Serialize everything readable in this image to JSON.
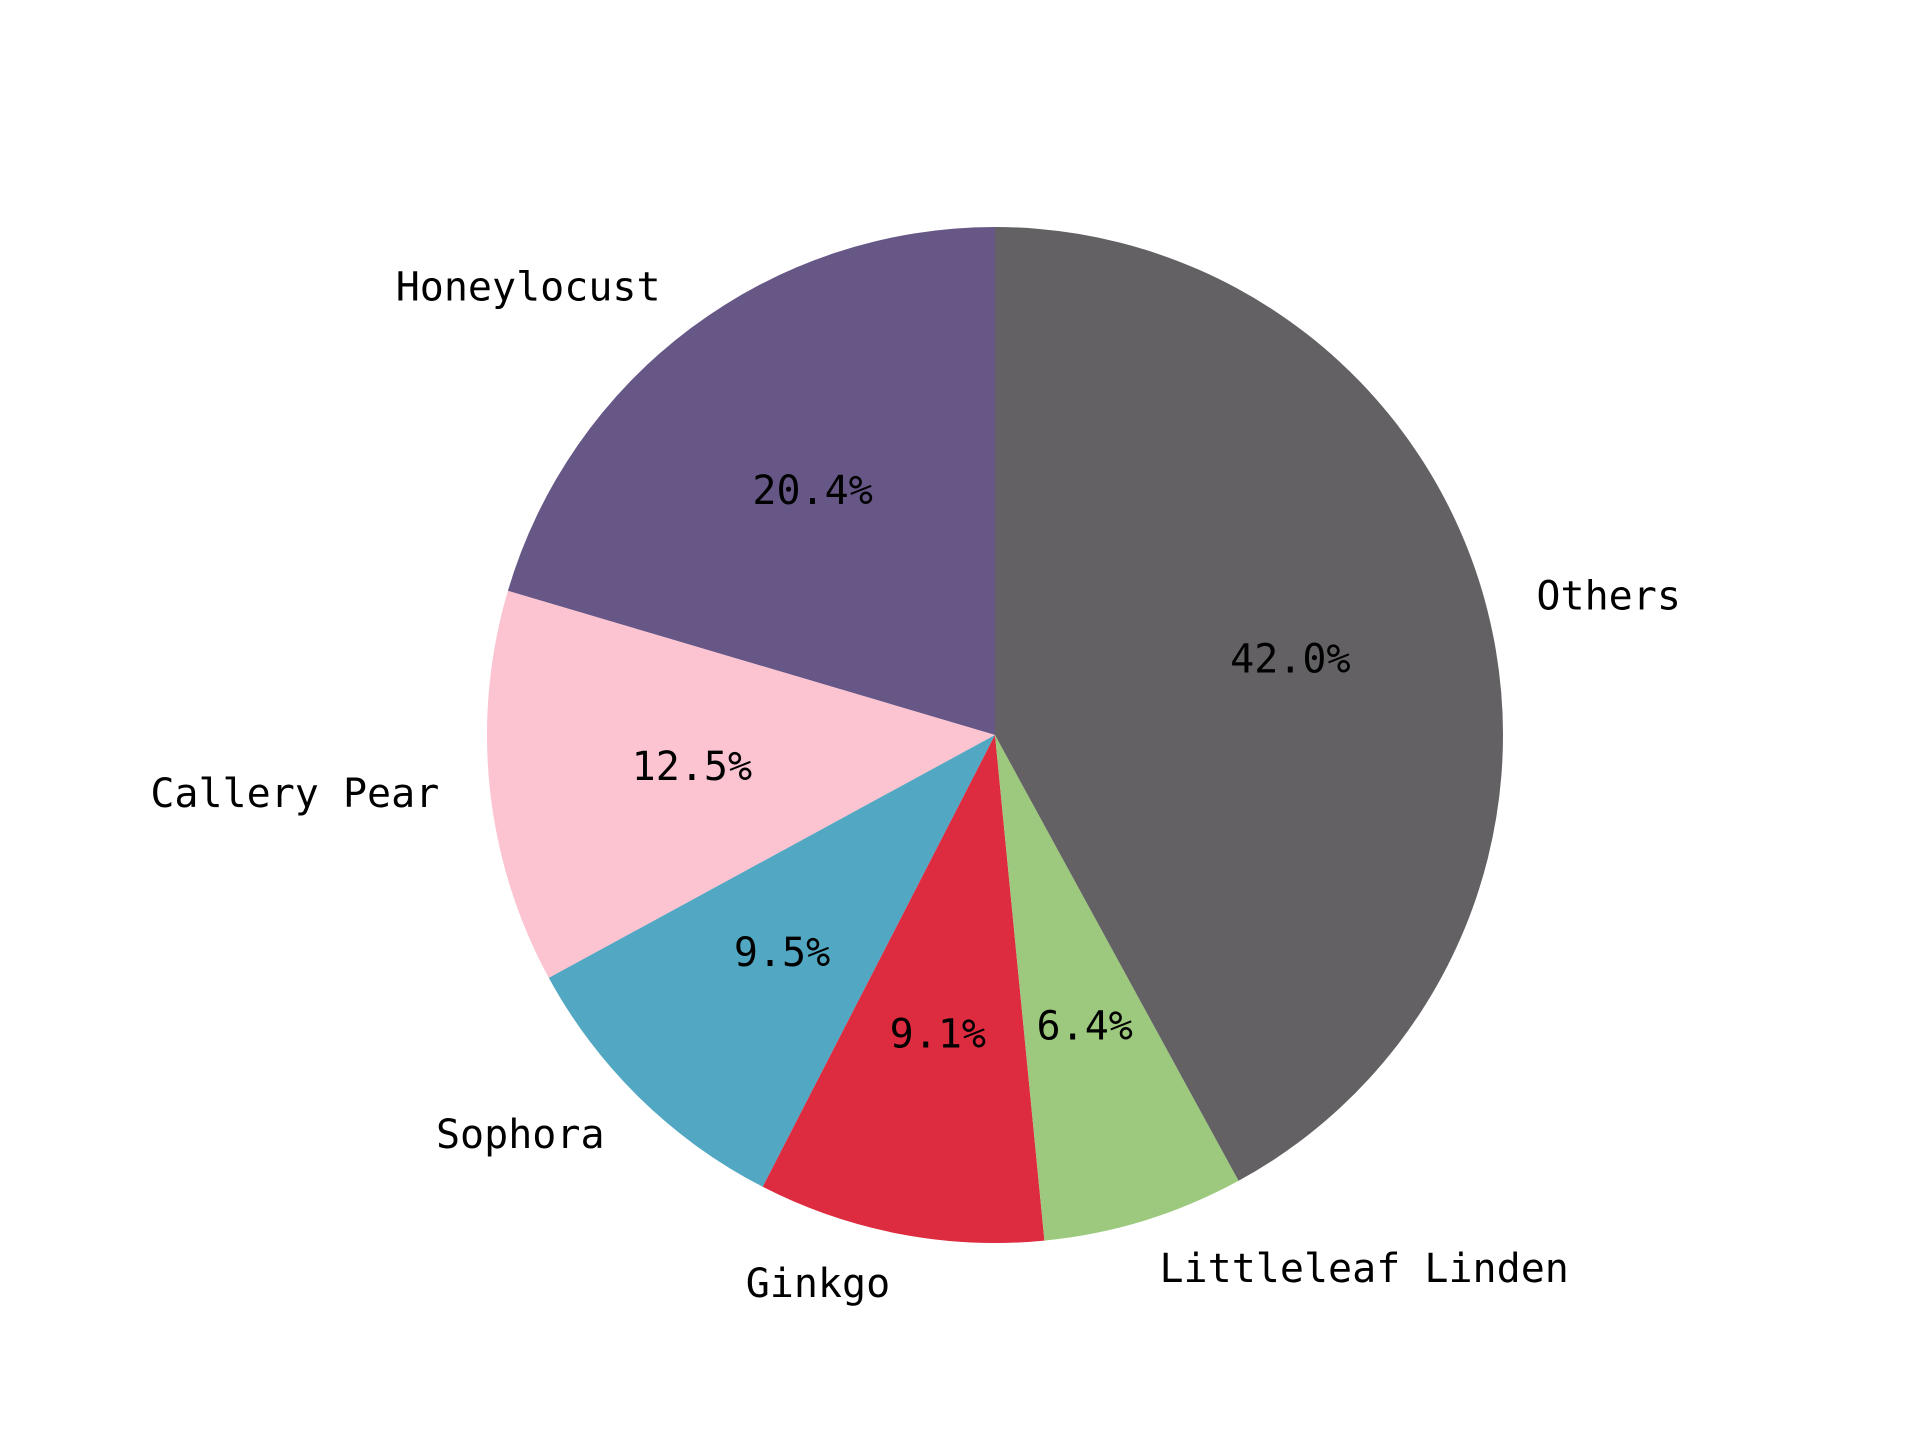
{
  "chart_data": {
    "type": "pie",
    "title": "",
    "start_angle_deg": 90,
    "direction": "counterclockwise",
    "slices": [
      {
        "label": "Honeylocust",
        "value": 20.4,
        "pct_label": "20.4%",
        "color": "#665787"
      },
      {
        "label": "Callery Pear",
        "value": 12.5,
        "pct_label": "12.5%",
        "color": "#fcc3d1"
      },
      {
        "label": "Sophora",
        "value": 9.5,
        "pct_label": "9.5%",
        "color": "#52a7c3"
      },
      {
        "label": "Ginkgo",
        "value": 9.1,
        "pct_label": "9.1%",
        "color": "#dd2b3f"
      },
      {
        "label": "Littleleaf Linden",
        "value": 6.4,
        "pct_label": "6.4%",
        "color": "#9cc97e"
      },
      {
        "label": "Others",
        "value": 42.0,
        "pct_label": "42.0%",
        "color": "#636164"
      }
    ]
  }
}
